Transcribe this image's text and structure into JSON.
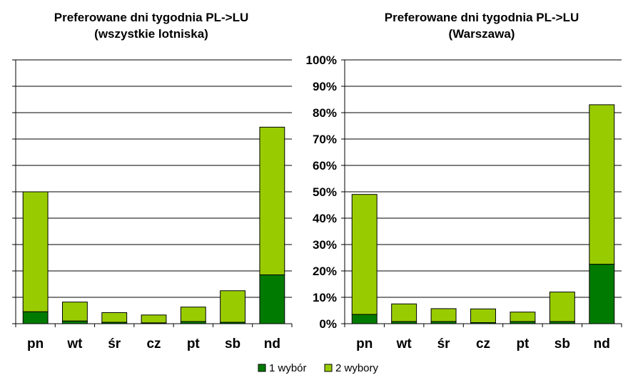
{
  "chart_data": [
    {
      "type": "bar",
      "stacked": true,
      "title": "Preferowane dni tygodnia PL->LU",
      "subtitle": "(wszystkie lotniska)",
      "categories": [
        "pn",
        "wt",
        "śr",
        "cz",
        "pt",
        "sb",
        "nd"
      ],
      "series": [
        {
          "name": "1 wybór",
          "values": [
            4.5,
            1.0,
            0.5,
            0.3,
            0.8,
            0.5,
            18.5
          ]
        },
        {
          "name": "2 wybory",
          "values": [
            45.5,
            7.2,
            3.7,
            3.0,
            5.5,
            12.0,
            56.0
          ]
        }
      ],
      "ylim": [
        0,
        100
      ],
      "yticks": [],
      "grid": true
    },
    {
      "type": "bar",
      "stacked": true,
      "title": "Preferowane dni tygodnia PL->LU",
      "subtitle": "(Warszawa)",
      "categories": [
        "pn",
        "wt",
        "śr",
        "cz",
        "pt",
        "sb",
        "nd"
      ],
      "series": [
        {
          "name": "1 wybór",
          "values": [
            3.5,
            0.8,
            0.8,
            0.4,
            0.8,
            0.8,
            22.5
          ]
        },
        {
          "name": "2 wybory",
          "values": [
            45.5,
            6.7,
            4.9,
            5.2,
            3.6,
            11.2,
            60.5
          ]
        }
      ],
      "ylim": [
        0,
        100
      ],
      "yticks": [
        "0%",
        "10%",
        "20%",
        "30%",
        "40%",
        "50%",
        "60%",
        "70%",
        "80%",
        "90%",
        "100%"
      ],
      "grid": true
    }
  ],
  "legend": {
    "placement": "bottom",
    "items": [
      {
        "label": "1 wybór",
        "color": "#007A00"
      },
      {
        "label": "2 wybory",
        "color": "#99CC00"
      }
    ]
  },
  "colors": {
    "series1": "#007A00",
    "series2": "#99CC00",
    "border": "#000000",
    "grid": "#000000"
  }
}
